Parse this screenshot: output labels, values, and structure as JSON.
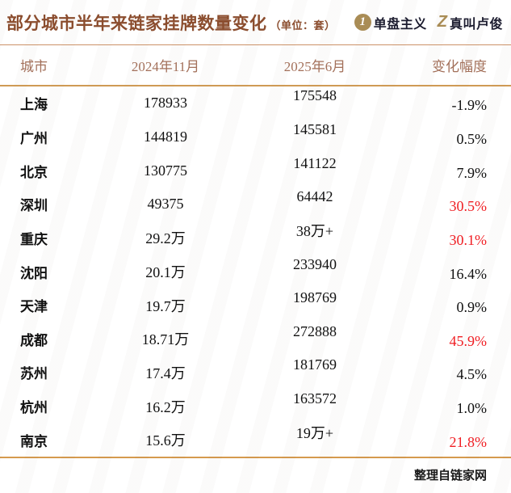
{
  "header": {
    "title": "部分城市半年来链家挂牌数量变化",
    "unit": "（单位：套）",
    "logo1": {
      "icon": "1",
      "label": "单盘主义"
    },
    "logo2": {
      "icon": "Z",
      "label": "真叫卢俊"
    }
  },
  "chart_data": {
    "type": "table",
    "title": "部分城市半年来链家挂牌数量变化（单位：套）",
    "columns": [
      "城市",
      "2024年11月",
      "2025年6月",
      "变化幅度"
    ],
    "rows": [
      {
        "city": "上海",
        "nov_2024": "178933",
        "jun_2025": "175548",
        "change": "-1.9%",
        "highlight": false
      },
      {
        "city": "广州",
        "nov_2024": "144819",
        "jun_2025": "145581",
        "change": "0.5%",
        "highlight": false
      },
      {
        "city": "北京",
        "nov_2024": "130775",
        "jun_2025": "141122",
        "change": "7.9%",
        "highlight": false
      },
      {
        "city": "深圳",
        "nov_2024": "49375",
        "jun_2025": "64442",
        "change": "30.5%",
        "highlight": true
      },
      {
        "city": "重庆",
        "nov_2024": "29.2万",
        "jun_2025": "38万+",
        "change": "30.1%",
        "highlight": true
      },
      {
        "city": "沈阳",
        "nov_2024": "20.1万",
        "jun_2025": "233940",
        "change": "16.4%",
        "highlight": false
      },
      {
        "city": "天津",
        "nov_2024": "19.7万",
        "jun_2025": "198769",
        "change": "0.9%",
        "highlight": false
      },
      {
        "city": "成都",
        "nov_2024": "18.71万",
        "jun_2025": "272888",
        "change": "45.9%",
        "highlight": true
      },
      {
        "city": "苏州",
        "nov_2024": "17.4万",
        "jun_2025": "181769",
        "change": "4.5%",
        "highlight": false
      },
      {
        "city": "杭州",
        "nov_2024": "16.2万",
        "jun_2025": "163572",
        "change": "1.0%",
        "highlight": false
      },
      {
        "city": "南京",
        "nov_2024": "15.6万",
        "jun_2025": "19万+",
        "change": "21.8%",
        "highlight": true
      }
    ]
  },
  "footer": {
    "source": "整理自链家网"
  },
  "colors": {
    "title_brown": "#8b4d2e",
    "column_header": "#a3705a",
    "divider_gold": "#cf9a55",
    "footer_line": "#d59a4e",
    "highlight_red": "#f01e23",
    "logo_gold": "#a98c55",
    "text": "#111111"
  }
}
